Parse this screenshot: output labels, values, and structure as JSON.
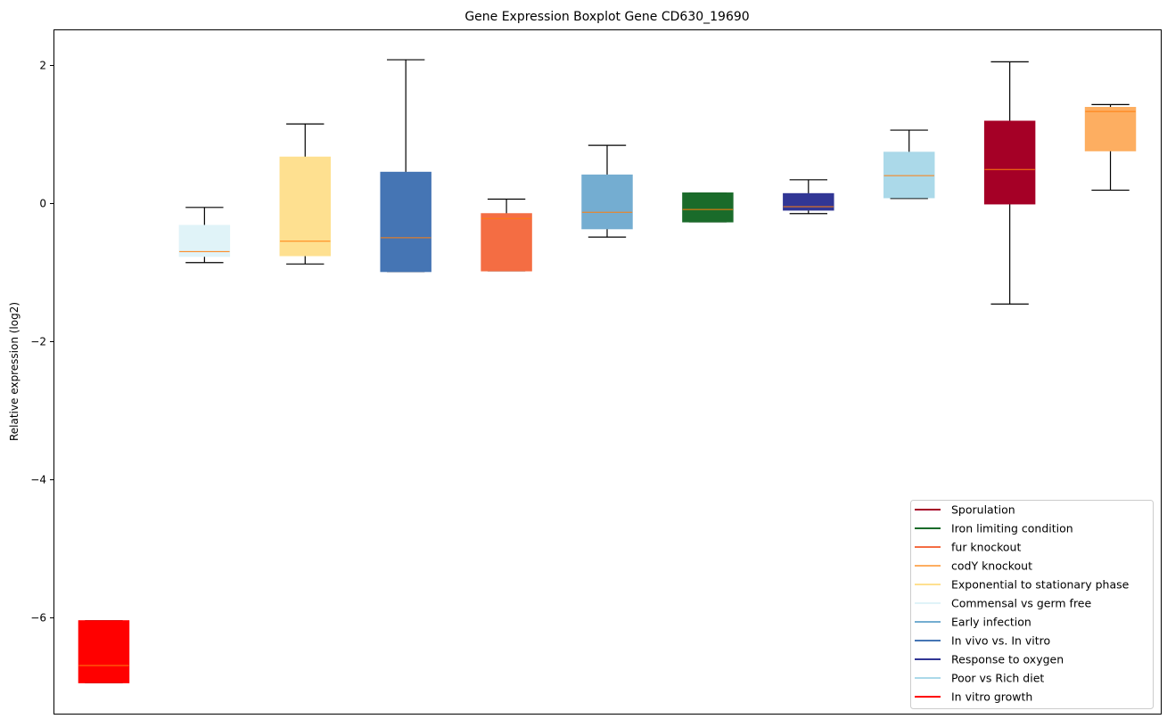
{
  "chart_data": {
    "type": "boxplot",
    "title": "Gene Expression Boxplot Gene CD630_19690",
    "xlabel": "",
    "ylabel": "Relative expression (log2)",
    "ylim": [
      -7.41,
      2.52
    ],
    "yticks": [
      2,
      0,
      -2,
      -4,
      -6
    ],
    "ytick_labels": [
      "2",
      "0",
      "−2",
      "−4",
      "−6"
    ],
    "grid": false,
    "legend_position": "lower-right",
    "median_color": "#ff7f0e",
    "boxes": [
      {
        "name": "In vitro growth",
        "color": "#ff0000",
        "whislo": -6.95,
        "q1": -6.95,
        "med": -6.7,
        "q3": -6.05,
        "whishi": -6.05
      },
      {
        "name": "Commensal vs germ free",
        "color": "#e0f3f8",
        "whislo": -0.86,
        "q1": -0.77,
        "med": -0.7,
        "q3": -0.32,
        "whishi": -0.06
      },
      {
        "name": "Exponential to stationary phase",
        "color": "#fee090",
        "whislo": -0.88,
        "q1": -0.76,
        "med": -0.55,
        "q3": 0.67,
        "whishi": 1.15
      },
      {
        "name": "In vivo vs. In vitro",
        "color": "#4575b4",
        "whislo": -0.99,
        "q1": -0.99,
        "med": -0.5,
        "q3": 0.45,
        "whishi": 2.08
      },
      {
        "name": "fur knockout",
        "color": "#f46d43",
        "whislo": -0.98,
        "q1": -0.98,
        "med": -0.22,
        "q3": -0.15,
        "whishi": 0.06
      },
      {
        "name": "Early infection",
        "color": "#74add1",
        "whislo": -0.49,
        "q1": -0.37,
        "med": -0.13,
        "q3": 0.41,
        "whishi": 0.84
      },
      {
        "name": "Iron limiting condition",
        "color": "#1a6b2a",
        "whislo": -0.27,
        "q1": -0.27,
        "med": -0.09,
        "q3": 0.15,
        "whishi": 0.15
      },
      {
        "name": "Response to oxygen",
        "color": "#313695",
        "whislo": -0.15,
        "q1": -0.1,
        "med": -0.05,
        "q3": 0.14,
        "whishi": 0.34
      },
      {
        "name": "Poor vs Rich diet",
        "color": "#abd9e9",
        "whislo": 0.07,
        "q1": 0.08,
        "med": 0.4,
        "q3": 0.74,
        "whishi": 1.06
      },
      {
        "name": "Sporulation",
        "color": "#a50026",
        "whislo": -1.46,
        "q1": -0.01,
        "med": 0.49,
        "q3": 1.19,
        "whishi": 2.05
      },
      {
        "name": "codY knockout",
        "color": "#fdae61",
        "whislo": 0.19,
        "q1": 0.76,
        "med": 1.33,
        "q3": 1.39,
        "whishi": 1.43
      }
    ],
    "legend": [
      {
        "label": "Sporulation",
        "color": "#a50026"
      },
      {
        "label": "Iron limiting condition",
        "color": "#1a6b2a"
      },
      {
        "label": "fur knockout",
        "color": "#f46d43"
      },
      {
        "label": "codY knockout",
        "color": "#fdae61"
      },
      {
        "label": "Exponential to stationary phase",
        "color": "#fee090"
      },
      {
        "label": "Commensal vs germ free",
        "color": "#e0f3f8"
      },
      {
        "label": "Early infection",
        "color": "#74add1"
      },
      {
        "label": "In vivo vs. In vitro",
        "color": "#4575b4"
      },
      {
        "label": "Response to oxygen",
        "color": "#313695"
      },
      {
        "label": "Poor vs Rich diet",
        "color": "#abd9e9"
      },
      {
        "label": "In vitro growth",
        "color": "#ff0000"
      }
    ]
  }
}
